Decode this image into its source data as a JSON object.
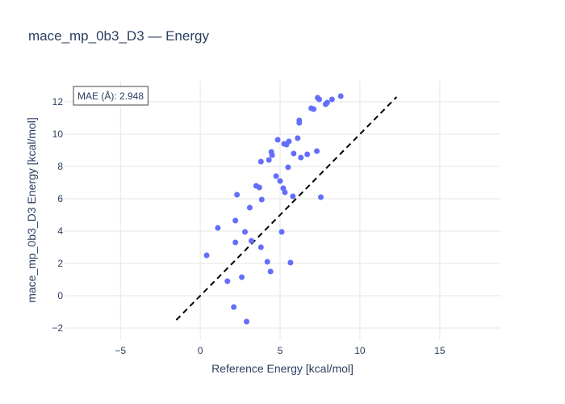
{
  "chart_data": {
    "type": "scatter",
    "title": "mace_mp_0b3_D3 — Energy",
    "xlabel": "Reference Energy [kcal/mol]",
    "ylabel": "mace_mp_0b3_D3 Energy [kcal/mol]",
    "xlim": [
      -8.5,
      18.8
    ],
    "ylim": [
      -2.7,
      13.3
    ],
    "xticks": [
      -5,
      0,
      5,
      10,
      15
    ],
    "yticks": [
      -2,
      0,
      2,
      4,
      6,
      8,
      10,
      12
    ],
    "grid": true,
    "marker_color": "#636efa",
    "reference_line": {
      "style": "dashed",
      "color": "#000000",
      "x": [
        -1.5,
        12.3
      ],
      "y": [
        -1.5,
        12.3
      ]
    },
    "annotation": {
      "text": "MAE (Å): 2.948",
      "position": "top-left"
    },
    "points": [
      {
        "x": 0.4,
        "y": 2.5
      },
      {
        "x": 1.1,
        "y": 4.2
      },
      {
        "x": 1.7,
        "y": 0.9
      },
      {
        "x": 2.1,
        "y": -0.7
      },
      {
        "x": 2.2,
        "y": 4.65
      },
      {
        "x": 2.2,
        "y": 3.3
      },
      {
        "x": 2.3,
        "y": 6.25
      },
      {
        "x": 2.6,
        "y": 1.15
      },
      {
        "x": 2.8,
        "y": 3.95
      },
      {
        "x": 2.9,
        "y": -1.6
      },
      {
        "x": 3.1,
        "y": 5.45
      },
      {
        "x": 3.2,
        "y": 3.4
      },
      {
        "x": 3.5,
        "y": 6.8
      },
      {
        "x": 3.7,
        "y": 6.7
      },
      {
        "x": 3.8,
        "y": 3.0
      },
      {
        "x": 3.8,
        "y": 8.3
      },
      {
        "x": 3.85,
        "y": 5.95
      },
      {
        "x": 4.2,
        "y": 2.1
      },
      {
        "x": 4.3,
        "y": 8.4
      },
      {
        "x": 4.4,
        "y": 1.5
      },
      {
        "x": 4.45,
        "y": 8.9
      },
      {
        "x": 4.5,
        "y": 8.7
      },
      {
        "x": 4.75,
        "y": 7.4
      },
      {
        "x": 4.85,
        "y": 9.65
      },
      {
        "x": 5.0,
        "y": 7.1
      },
      {
        "x": 5.1,
        "y": 3.95
      },
      {
        "x": 5.2,
        "y": 6.65
      },
      {
        "x": 5.25,
        "y": 9.4
      },
      {
        "x": 5.3,
        "y": 6.4
      },
      {
        "x": 5.4,
        "y": 9.35
      },
      {
        "x": 5.5,
        "y": 7.95
      },
      {
        "x": 5.55,
        "y": 9.55
      },
      {
        "x": 5.65,
        "y": 2.05
      },
      {
        "x": 5.8,
        "y": 6.15
      },
      {
        "x": 5.85,
        "y": 8.8
      },
      {
        "x": 6.1,
        "y": 9.75
      },
      {
        "x": 6.2,
        "y": 10.85
      },
      {
        "x": 6.2,
        "y": 10.7
      },
      {
        "x": 6.3,
        "y": 8.55
      },
      {
        "x": 6.7,
        "y": 8.75
      },
      {
        "x": 6.95,
        "y": 11.6
      },
      {
        "x": 7.1,
        "y": 11.55
      },
      {
        "x": 7.3,
        "y": 8.95
      },
      {
        "x": 7.35,
        "y": 12.25
      },
      {
        "x": 7.45,
        "y": 12.15
      },
      {
        "x": 7.55,
        "y": 6.1
      },
      {
        "x": 7.85,
        "y": 11.85
      },
      {
        "x": 7.95,
        "y": 11.95
      },
      {
        "x": 8.25,
        "y": 12.15
      },
      {
        "x": 8.8,
        "y": 12.35
      }
    ]
  }
}
